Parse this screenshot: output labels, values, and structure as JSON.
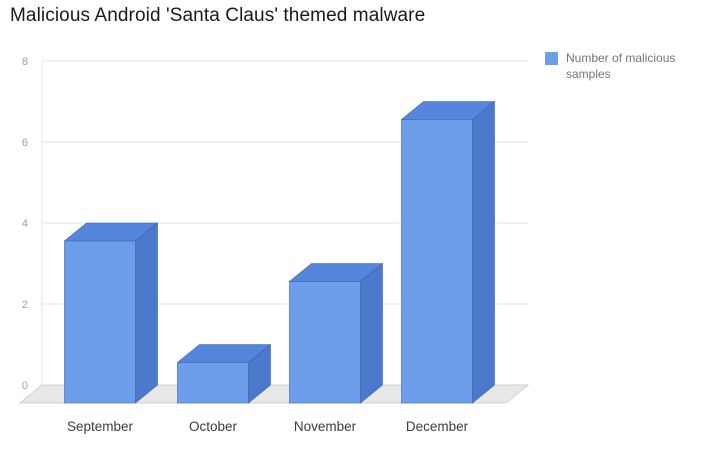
{
  "chart_data": {
    "type": "bar",
    "style": "3d",
    "title": "Malicious Android 'Santa Claus' themed malware",
    "categories": [
      "September",
      "October",
      "November",
      "December"
    ],
    "series": [
      {
        "name": "Number of malicious samples",
        "values": [
          4,
          1,
          3,
          7
        ]
      }
    ],
    "xlabel": "",
    "ylabel": "",
    "ylim": [
      0,
      8
    ],
    "y_ticks": [
      0,
      2,
      4,
      6,
      8
    ],
    "grid": true,
    "legend_position": "top-right",
    "colors": {
      "bar_front": "#6d9eeb",
      "bar_top": "#5585dd",
      "bar_side": "#4b79cc",
      "bar_edge": "#3e63a9",
      "floor": "#e8e8e8",
      "floor_edge": "#d0d0d0",
      "gridline": "#e3e3e3",
      "baseline": "#c9c9c9",
      "tick_text": "#9e9e9e",
      "category_text": "#3c3c3c",
      "title_text": "#1a1a1a",
      "legend_text": "#757575"
    }
  }
}
